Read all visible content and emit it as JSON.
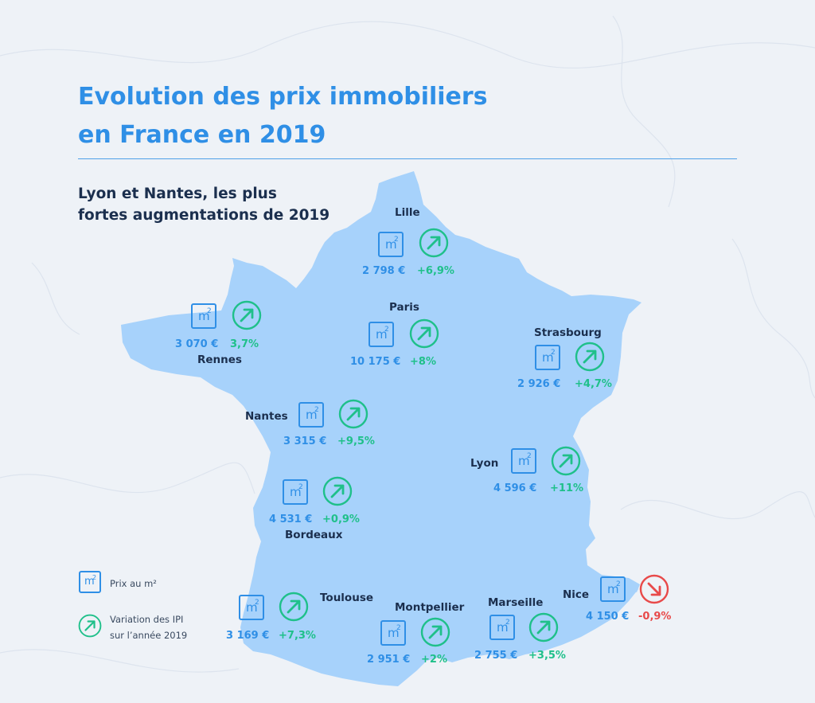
{
  "title_line1": "Evolution des prix immobiliers",
  "title_line2": "en France en 2019",
  "subtitle_line1": "Lyon et Nantes, les plus",
  "subtitle_line2": "fortes augmentations de 2019",
  "icon_m2": "m",
  "icon_m2_exp": "2",
  "colors": {
    "title": "#2f8fe6",
    "map_fill": "#a7d2fb",
    "increase": "#1fc08a",
    "decrease": "#e84a4a",
    "price": "#2f8fe6",
    "city": "#1b2f4e"
  },
  "cities": [
    {
      "name": "Lille",
      "price": "2 798 €",
      "variation": "+6,9%",
      "trend": "up"
    },
    {
      "name": "Rennes",
      "price": "3 070 €",
      "variation": "3,7%",
      "trend": "up"
    },
    {
      "name": "Paris",
      "price": "10 175 €",
      "variation": "+8%",
      "trend": "up"
    },
    {
      "name": "Strasbourg",
      "price": "2 926 €",
      "variation": "+4,7%",
      "trend": "up"
    },
    {
      "name": "Nantes",
      "price": "3 315 €",
      "variation": "+9,5%",
      "trend": "up"
    },
    {
      "name": "Lyon",
      "price": "4 596 €",
      "variation": "+11%",
      "trend": "up"
    },
    {
      "name": "Bordeaux",
      "price": "4 531 €",
      "variation": "+0,9%",
      "trend": "up"
    },
    {
      "name": "Toulouse",
      "price": "3 169 €",
      "variation": "+7,3%",
      "trend": "up"
    },
    {
      "name": "Montpellier",
      "price": "2 951 €",
      "variation": "+2%",
      "trend": "up"
    },
    {
      "name": "Marseille",
      "price": "2 755 €",
      "variation": "+3,5%",
      "trend": "up"
    },
    {
      "name": "Nice",
      "price": "4 150 €",
      "variation": "-0,9%",
      "trend": "down"
    }
  ],
  "legend": {
    "price_label": "Prix au m²",
    "variation_line1": "Variation des IPI",
    "variation_line2": "sur l’année 2019"
  }
}
